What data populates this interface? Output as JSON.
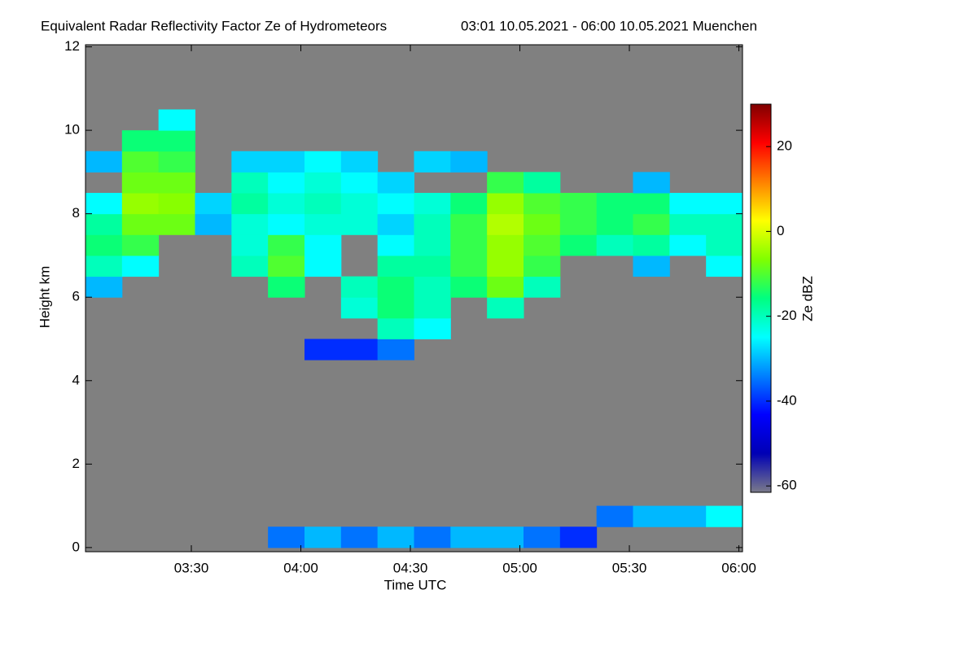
{
  "chart_data": {
    "type": "heatmap",
    "title": "Equivalent Radar Reflectivity Factor Ze of Hydrometeors",
    "subtitle": "03:01 10.05.2021 - 06:00 10.05.2021 Muenchen",
    "x_label": "Time UTC",
    "y_label": "Height km",
    "colorbar_label": "Ze dBZ",
    "xlim": [
      1,
      181
    ],
    "xticks": [
      {
        "value": 30,
        "label": "03:30"
      },
      {
        "value": 60,
        "label": "04:00"
      },
      {
        "value": 90,
        "label": "04:30"
      },
      {
        "value": 120,
        "label": "05:00"
      },
      {
        "value": 150,
        "label": "05:30"
      },
      {
        "value": 180,
        "label": "06:00"
      }
    ],
    "ylim": [
      -0.1,
      12.05
    ],
    "yticks": [
      0,
      2,
      4,
      6,
      8,
      10,
      12
    ],
    "zlim": [
      -61.5,
      30
    ],
    "zticks": [
      -60,
      -40,
      -20,
      0,
      20
    ],
    "background": "#808080",
    "colormap": [
      "#7a7a8a",
      "#0000b4",
      "#0000ff",
      "#0080ff",
      "#00ffff",
      "#00ff80",
      "#80ff00",
      "#ffff00",
      "#ff8000",
      "#ff0000",
      "#800000"
    ],
    "x_bins": [
      1,
      11,
      21,
      31,
      41,
      51,
      61,
      71,
      81,
      91,
      101,
      111,
      121,
      131,
      141,
      151,
      161,
      171,
      181
    ],
    "y_bins": [
      0,
      0.5,
      1,
      1.5,
      2,
      2.5,
      3,
      3.5,
      4,
      4.5,
      5,
      5.5,
      6,
      6.5,
      7,
      7.5,
      8,
      8.5,
      9,
      9.5,
      10,
      10.5
    ],
    "z": [
      [
        null,
        null,
        null,
        null,
        null,
        -35,
        -30,
        -35,
        -30,
        -35,
        -30,
        -30,
        -35,
        -40,
        null,
        null,
        null,
        null
      ],
      [
        null,
        null,
        null,
        null,
        null,
        null,
        null,
        null,
        null,
        null,
        null,
        null,
        null,
        null,
        -35,
        -30,
        -30,
        -25
      ],
      [
        null,
        null,
        null,
        null,
        null,
        null,
        null,
        null,
        null,
        null,
        null,
        null,
        null,
        null,
        null,
        null,
        null,
        null
      ],
      [
        null,
        null,
        null,
        null,
        null,
        null,
        null,
        null,
        null,
        null,
        null,
        null,
        null,
        null,
        null,
        null,
        null,
        null
      ],
      [
        null,
        null,
        null,
        null,
        null,
        null,
        null,
        null,
        null,
        null,
        null,
        null,
        null,
        null,
        null,
        null,
        null,
        null
      ],
      [
        null,
        null,
        null,
        null,
        null,
        null,
        null,
        null,
        null,
        null,
        null,
        null,
        null,
        null,
        null,
        null,
        null,
        null
      ],
      [
        null,
        null,
        null,
        null,
        null,
        null,
        null,
        null,
        null,
        null,
        null,
        null,
        null,
        null,
        null,
        null,
        null,
        null
      ],
      [
        null,
        null,
        null,
        null,
        null,
        null,
        null,
        null,
        null,
        null,
        null,
        null,
        null,
        null,
        null,
        null,
        null,
        null
      ],
      [
        null,
        null,
        null,
        null,
        null,
        null,
        null,
        null,
        null,
        null,
        null,
        null,
        null,
        null,
        null,
        null,
        null,
        null
      ],
      [
        null,
        null,
        null,
        null,
        null,
        null,
        -40,
        -40,
        -35,
        null,
        null,
        null,
        null,
        null,
        null,
        null,
        null,
        null
      ],
      [
        null,
        null,
        null,
        null,
        null,
        null,
        null,
        null,
        -20,
        -25,
        null,
        null,
        null,
        null,
        null,
        null,
        null,
        null
      ],
      [
        null,
        null,
        null,
        null,
        null,
        null,
        null,
        -22,
        -15,
        -20,
        null,
        -20,
        null,
        null,
        null,
        null,
        null,
        null
      ],
      [
        -30,
        null,
        null,
        null,
        null,
        -15,
        null,
        -20,
        -15,
        -20,
        -15,
        -8,
        -20,
        null,
        null,
        null,
        null,
        null
      ],
      [
        -20,
        -25,
        null,
        null,
        -20,
        -10,
        -25,
        null,
        -18,
        -18,
        -12,
        -5,
        -12,
        null,
        null,
        -30,
        null,
        -25
      ],
      [
        -15,
        -12,
        null,
        null,
        -22,
        -12,
        -25,
        null,
        -25,
        -20,
        -12,
        -5,
        -10,
        -15,
        -20,
        -18,
        -25,
        -20
      ],
      [
        -18,
        -8,
        -8,
        -30,
        -22,
        -25,
        -22,
        -22,
        -28,
        -20,
        -12,
        -3,
        -8,
        -12,
        -15,
        -12,
        -20,
        -20
      ],
      [
        -25,
        -5,
        -6,
        -28,
        -18,
        -22,
        -20,
        -22,
        -25,
        -22,
        -15,
        -5,
        -10,
        -12,
        -15,
        -15,
        -25,
        -25
      ],
      [
        null,
        -8,
        -8,
        null,
        -20,
        -25,
        -22,
        -25,
        -28,
        null,
        null,
        -12,
        -18,
        null,
        null,
        -30,
        null,
        null
      ],
      [
        -30,
        -10,
        -12,
        null,
        -28,
        -28,
        -25,
        -28,
        null,
        -28,
        -30,
        null,
        null,
        null,
        null,
        null,
        null,
        null
      ],
      [
        null,
        -15,
        -15,
        null,
        null,
        null,
        null,
        null,
        null,
        null,
        null,
        null,
        null,
        null,
        null,
        null,
        null,
        null
      ],
      [
        null,
        null,
        -25,
        null,
        null,
        null,
        null,
        null,
        null,
        null,
        null,
        null,
        null,
        null,
        null,
        null,
        null,
        null
      ]
    ]
  }
}
